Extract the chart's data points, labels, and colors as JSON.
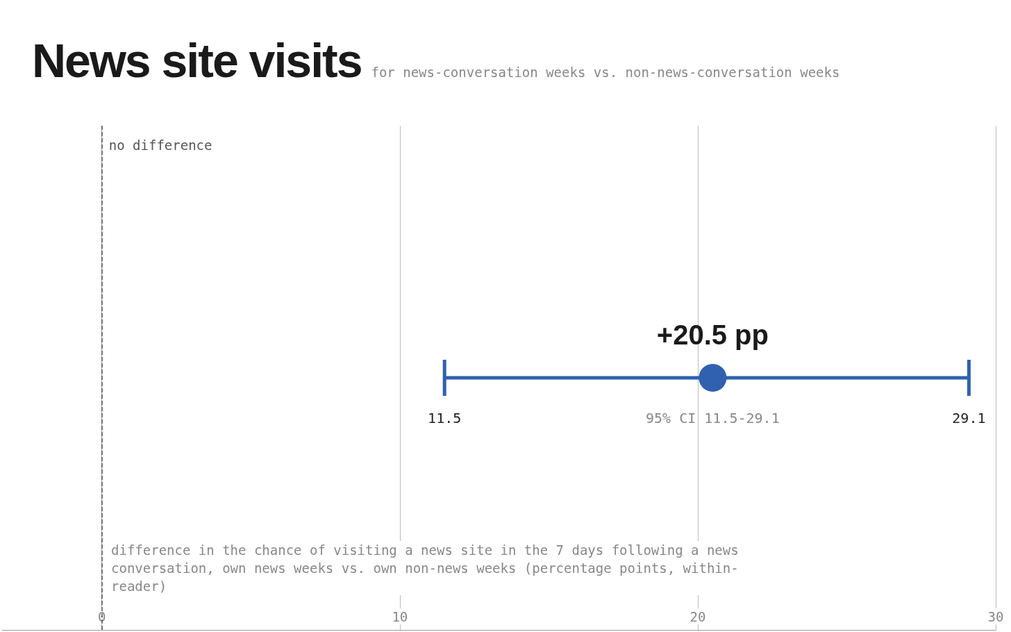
{
  "chart_data": {
    "type": "scatter",
    "title": "News site visits",
    "subtitle": "for news-conversation weeks vs. non-news-conversation weeks",
    "xlabel": "difference in the chance of visiting a news site in the 7 days following a news conversation, own news weeks vs. own non-news weeks (percentage points, within-reader)",
    "orientation": "horizontal",
    "categories": [
      null
    ],
    "series": [
      {
        "color": "#3060b0",
        "values": [
          20.5
        ],
        "errors": [
          [
            11.5,
            29.1
          ]
        ],
        "value_labels": [
          "+20.5 pp"
        ]
      }
    ],
    "annotations": [
      "11.5",
      "29.1",
      "95% CI 11.5-29.1"
    ],
    "ref_lines": [
      {
        "axis": "x",
        "value": 0,
        "label": "no difference",
        "line_style": "dashed",
        "color": "#555555"
      }
    ],
    "xlim": [
      -3.35,
      30
    ],
    "xticks": [
      0,
      10,
      20,
      30
    ],
    "grid": "x",
    "marker": "circle"
  }
}
